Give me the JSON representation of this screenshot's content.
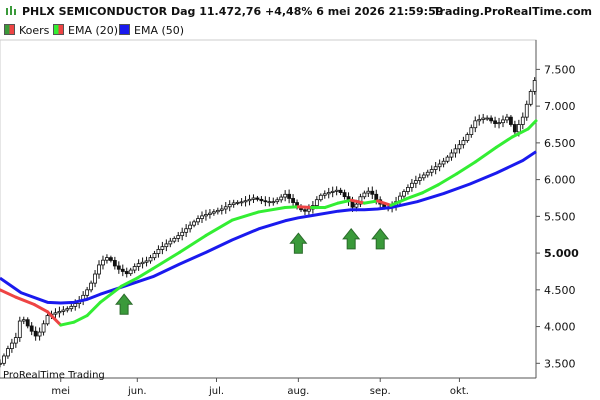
{
  "header": {
    "title": "PHLX SEMICONDUCTOR Dag 11.472,76 +4,48% 6 mei 2026 21:59:59",
    "brand": "Trading.ProRealTime.com"
  },
  "legend": [
    {
      "label": "Koers",
      "color": "#3a9a3a"
    },
    {
      "label": "EMA (20)",
      "color": "#33ee33"
    },
    {
      "label": "EMA (50)",
      "color": "#1a1aee"
    }
  ],
  "watermark": "ProRealTime Trading",
  "colors": {
    "ema20_up": "#33ee33",
    "ema20_down": "#ee4444",
    "ema50": "#1a1aee",
    "arrow": "#3a9a3a",
    "candle": "#111111"
  },
  "chart_data": {
    "type": "line",
    "y_ticks": [
      "7.500",
      "7.000",
      "6.500",
      "6.000",
      "5.500",
      "5.000",
      "4.500",
      "4.000",
      "3.500"
    ],
    "y_tick_values": [
      7500,
      7000,
      6500,
      6000,
      5500,
      5000,
      4500,
      4000,
      3500
    ],
    "ylim": [
      3300,
      7900
    ],
    "x_labels": [
      "mei",
      "jun.",
      "jul.",
      "aug.",
      "sep.",
      "okt."
    ],
    "x_label_days": [
      5,
      34,
      64,
      95,
      126,
      156
    ],
    "x_range": [
      -18,
      185
    ],
    "series": [
      {
        "name": "EMA (20)",
        "x": [
          -18,
          -12,
          -5,
          0,
          5,
          10,
          15,
          20,
          28,
          34,
          40,
          50,
          60,
          70,
          80,
          90,
          95,
          100,
          105,
          110,
          115,
          120,
          125,
          130,
          136,
          142,
          148,
          155,
          162,
          170,
          176,
          182,
          185
        ],
        "values": [
          4500,
          4400,
          4300,
          4200,
          4020,
          4060,
          4150,
          4330,
          4550,
          4660,
          4790,
          5010,
          5240,
          5450,
          5560,
          5620,
          5630,
          5620,
          5620,
          5680,
          5720,
          5680,
          5710,
          5650,
          5740,
          5820,
          5930,
          6080,
          6240,
          6440,
          6580,
          6690,
          6800
        ]
      },
      {
        "name": "EMA (50)",
        "x": [
          -18,
          -10,
          0,
          5,
          10,
          15,
          20,
          30,
          40,
          50,
          60,
          70,
          80,
          90,
          95,
          100,
          110,
          115,
          120,
          125,
          130,
          140,
          150,
          160,
          170,
          180,
          185
        ],
        "values": [
          4660,
          4460,
          4330,
          4320,
          4330,
          4370,
          4440,
          4560,
          4680,
          4850,
          5010,
          5180,
          5330,
          5440,
          5480,
          5510,
          5570,
          5590,
          5590,
          5600,
          5620,
          5700,
          5810,
          5940,
          6090,
          6260,
          6380
        ]
      },
      {
        "name": "Koers",
        "x": [
          -18,
          -15,
          -12,
          -10,
          -7,
          -4,
          0,
          4,
          8,
          12,
          16,
          20,
          23,
          26,
          30,
          34,
          38,
          42,
          46,
          50,
          54,
          58,
          62,
          66,
          70,
          74,
          78,
          82,
          86,
          90,
          94,
          97,
          100,
          103,
          106,
          110,
          113,
          116,
          119,
          122,
          125,
          128,
          131,
          134,
          138,
          142,
          146,
          150,
          154,
          158,
          162,
          166,
          170,
          174,
          177,
          180,
          183,
          185
        ],
        "values": [
          3500,
          3700,
          3850,
          4150,
          3980,
          3850,
          4150,
          4200,
          4250,
          4350,
          4550,
          4880,
          4950,
          4800,
          4720,
          4850,
          4900,
          5050,
          5150,
          5250,
          5380,
          5500,
          5550,
          5600,
          5680,
          5700,
          5750,
          5700,
          5700,
          5800,
          5650,
          5560,
          5620,
          5780,
          5820,
          5860,
          5750,
          5600,
          5800,
          5850,
          5700,
          5600,
          5650,
          5800,
          5950,
          6050,
          6150,
          6250,
          6400,
          6550,
          6800,
          6850,
          6750,
          6850,
          6650,
          6850,
          7200,
          7400
        ]
      }
    ],
    "annotations": [
      {
        "type": "arrow-up",
        "x": 29,
        "y": 4440
      },
      {
        "type": "arrow-up",
        "x": 95,
        "y": 5270
      },
      {
        "type": "arrow-up",
        "x": 115,
        "y": 5330
      },
      {
        "type": "arrow-up",
        "x": 126,
        "y": 5330
      }
    ]
  }
}
